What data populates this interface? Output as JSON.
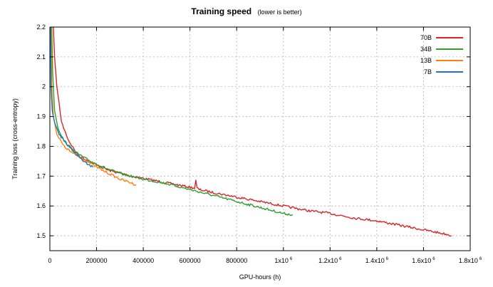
{
  "chart_data": {
    "type": "line",
    "title": "Training speed",
    "subtitle": "(lower is better)",
    "xlabel": "GPU-hours (h)",
    "ylabel": "Training loss (cross-entropy)",
    "xlim": [
      0,
      1800000
    ],
    "ylim": [
      1.45,
      2.2
    ],
    "grid": true,
    "legend_position": "top-right",
    "x_ticks": [
      {
        "value": 0,
        "label": "0",
        "exp": ""
      },
      {
        "value": 200000,
        "label": "200000",
        "exp": ""
      },
      {
        "value": 400000,
        "label": "400000",
        "exp": ""
      },
      {
        "value": 600000,
        "label": "600000",
        "exp": ""
      },
      {
        "value": 800000,
        "label": "800000",
        "exp": ""
      },
      {
        "value": 1000000,
        "label": "1x10",
        "exp": "6"
      },
      {
        "value": 1200000,
        "label": "1.2x10",
        "exp": "6"
      },
      {
        "value": 1400000,
        "label": "1.4x10",
        "exp": "6"
      },
      {
        "value": 1600000,
        "label": "1.6x10",
        "exp": "6"
      },
      {
        "value": 1800000,
        "label": "1.8x10",
        "exp": "6"
      }
    ],
    "y_ticks": [
      {
        "value": 1.5,
        "label": "1.5"
      },
      {
        "value": 1.6,
        "label": "1.6"
      },
      {
        "value": 1.7,
        "label": "1.7"
      },
      {
        "value": 1.8,
        "label": "1.8"
      },
      {
        "value": 1.9,
        "label": "1.9"
      },
      {
        "value": 2.0,
        "label": "2"
      },
      {
        "value": 2.1,
        "label": "2.1"
      },
      {
        "value": 2.2,
        "label": "2.2"
      }
    ],
    "series": [
      {
        "name": "70B",
        "color": "#d62728",
        "x": [
          15000,
          20000,
          30000,
          50000,
          80000,
          120000,
          180000,
          250000,
          350000,
          450000,
          550000,
          620000,
          625000,
          630000,
          640000,
          700000,
          800000,
          900000,
          1000000,
          1100000,
          1200000,
          1300000,
          1400000,
          1500000,
          1600000,
          1700000,
          1720000
        ],
        "y": [
          2.2,
          2.1,
          2.0,
          1.88,
          1.82,
          1.77,
          1.745,
          1.72,
          1.7,
          1.685,
          1.67,
          1.66,
          1.685,
          1.66,
          1.655,
          1.645,
          1.63,
          1.615,
          1.6,
          1.585,
          1.575,
          1.56,
          1.55,
          1.535,
          1.52,
          1.505,
          1.5
        ]
      },
      {
        "name": "34B",
        "color": "#2ca02c",
        "x": [
          8000,
          12000,
          20000,
          35000,
          60000,
          100000,
          150000,
          200000,
          260000,
          320000,
          400000,
          500000,
          600000,
          700000,
          800000,
          900000,
          1000000,
          1040000
        ],
        "y": [
          2.2,
          2.05,
          1.92,
          1.86,
          1.82,
          1.785,
          1.76,
          1.74,
          1.72,
          1.705,
          1.69,
          1.675,
          1.655,
          1.635,
          1.615,
          1.595,
          1.575,
          1.57
        ]
      },
      {
        "name": "13B",
        "color": "#ff7f0e",
        "x": [
          5000,
          8000,
          15000,
          30000,
          60000,
          100000,
          150000,
          200000,
          250000,
          300000,
          340000,
          370000
        ],
        "y": [
          2.2,
          2.0,
          1.9,
          1.84,
          1.8,
          1.775,
          1.755,
          1.73,
          1.71,
          1.69,
          1.68,
          1.67
        ]
      },
      {
        "name": "7B",
        "color": "#1f77b4",
        "x": [
          3000,
          5000,
          10000,
          20000,
          40000,
          70000,
          100000,
          130000,
          160000,
          185000
        ],
        "y": [
          2.2,
          2.0,
          1.92,
          1.88,
          1.84,
          1.81,
          1.785,
          1.76,
          1.74,
          1.73
        ]
      }
    ]
  }
}
